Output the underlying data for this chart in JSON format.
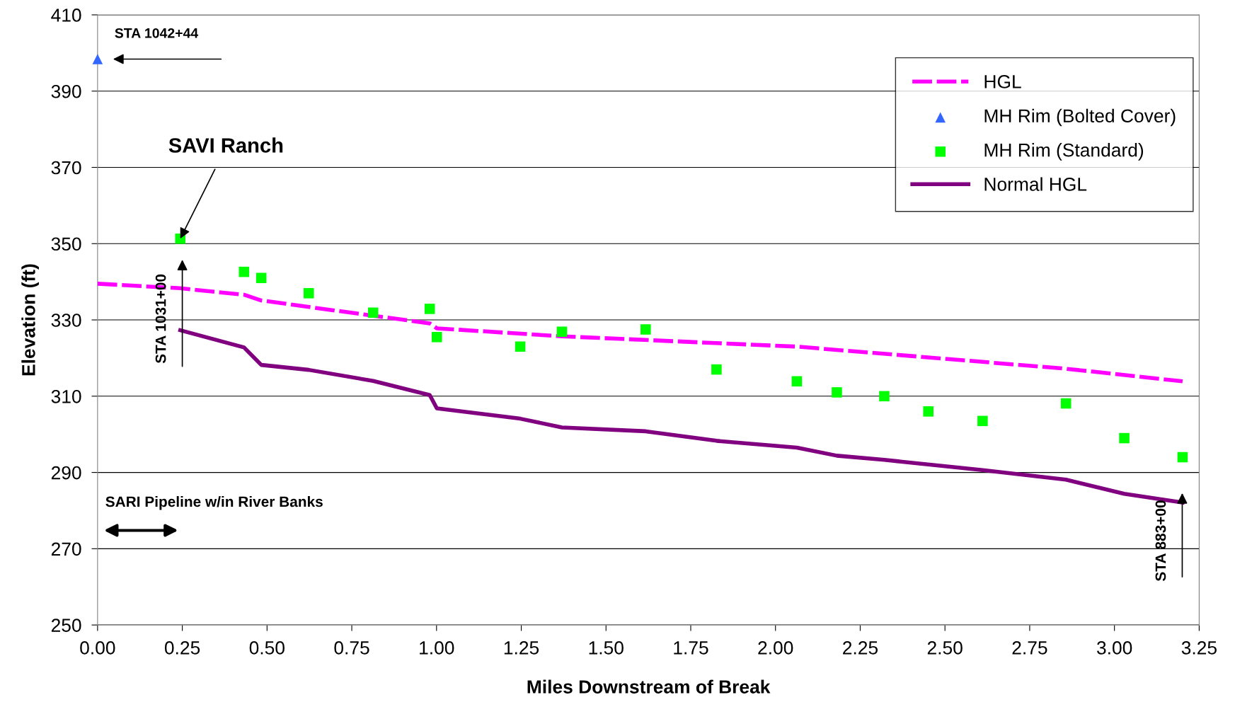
{
  "chart_data": {
    "type": "line",
    "xlabel": "Miles Downstream of Break",
    "ylabel": "Elevation (ft)",
    "xlim": [
      0,
      3.25
    ],
    "xticks": [
      {
        "value": 0,
        "label": "0.00"
      },
      0.25,
      {
        "value": 0.5,
        "label": "0.50"
      },
      0.75,
      {
        "value": 1,
        "label": "1.00"
      },
      1.25,
      {
        "value": 1.5,
        "label": "1.50"
      },
      1.75,
      {
        "value": 2,
        "label": "2.00"
      },
      2.25,
      {
        "value": 2.5,
        "label": "2.50"
      },
      2.75,
      {
        "value": 3,
        "label": "3.00"
      },
      3.25
    ],
    "ylim": [
      250,
      410
    ],
    "yticks": [
      250,
      270,
      290,
      310,
      330,
      350,
      370,
      390,
      410
    ],
    "grid": "y",
    "legend": "top right",
    "series": [
      {
        "name": "HGL",
        "color": "#ff00ff",
        "line_style": "dashed",
        "marker": "none",
        "x": [
          0,
          0.244,
          0.432,
          0.483,
          0.98,
          1.001,
          1.37,
          2.063,
          2.857,
          3.201
        ],
        "values": [
          339.5,
          338.3,
          336.6,
          335.1,
          329.1,
          327.8,
          325.7,
          323.0,
          317.2,
          313.9
        ]
      },
      {
        "name": "MH Rim (Bolted Cover)",
        "type": "scatter",
        "color": "#3366ff",
        "marker": "triangle",
        "x": [
          0
        ],
        "values": [
          398.4
        ]
      },
      {
        "name": "MH Rim (Standard)",
        "type": "scatter",
        "color": "#00ff00",
        "marker": "square",
        "x": [
          0.244,
          0.432,
          0.483,
          0.623,
          0.813,
          0.98,
          1.001,
          1.247,
          1.37,
          1.617,
          1.826,
          2.063,
          2.181,
          2.321,
          2.451,
          2.611,
          2.857,
          3.029,
          3.201
        ],
        "values": [
          351.3,
          342.6,
          341.0,
          337.0,
          331.9,
          332.9,
          325.5,
          323.0,
          326.9,
          327.5,
          317.0,
          313.9,
          311.0,
          310.0,
          306.0,
          303.5,
          308.1,
          299.0,
          294.0
        ]
      },
      {
        "name": "Normal HGL",
        "color": "#800080",
        "line_style": "solid",
        "marker": "none",
        "x": [
          0.244,
          0.432,
          0.483,
          0.623,
          0.813,
          0.98,
          1.001,
          1.247,
          1.37,
          1.617,
          1.826,
          2.063,
          2.181,
          2.321,
          2.611,
          2.857,
          3.029,
          3.201
        ],
        "values": [
          327.3,
          322.8,
          318.2,
          316.9,
          314.0,
          310.3,
          306.8,
          304.1,
          301.8,
          300.8,
          298.3,
          296.5,
          294.4,
          293.3,
          290.6,
          288.1,
          284.4,
          282.1
        ]
      }
    ],
    "annotations": [
      {
        "text": "STA 1042+44",
        "x": 0,
        "y": 398.4
      },
      {
        "text": "SAVI Ranch",
        "x": 0.244,
        "y": 351.3
      },
      {
        "text": "STA 1031+00",
        "x": 0.25,
        "y": 327.3
      },
      {
        "text": "STA 883+00",
        "x": 3.2,
        "y": 282.1
      },
      "SARI Pipeline w/in River Banks"
    ]
  }
}
